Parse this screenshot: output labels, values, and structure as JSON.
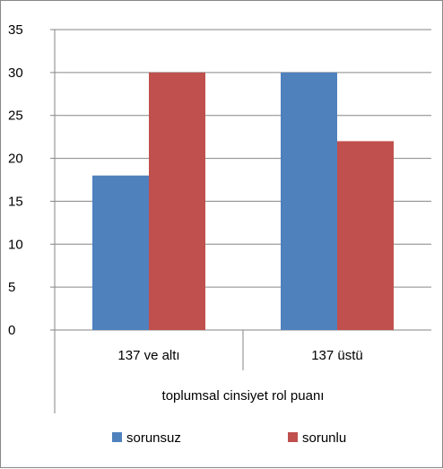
{
  "chart_data": {
    "type": "bar",
    "categories": [
      "137 ve altı",
      "137 üstü"
    ],
    "series": [
      {
        "name": "sorunsuz",
        "values": [
          18,
          30
        ],
        "color": "#4F81BD"
      },
      {
        "name": "sorunlu",
        "values": [
          30,
          22
        ],
        "color": "#C0504D"
      }
    ],
    "title": "",
    "xlabel": "toplumsal cinsiyet rol puanı",
    "ylabel": "",
    "ylim": [
      0,
      35
    ],
    "yticks": [
      "0",
      "5",
      "10",
      "15",
      "20",
      "25",
      "30",
      "35"
    ],
    "grid": true,
    "legend_position": "bottom"
  }
}
